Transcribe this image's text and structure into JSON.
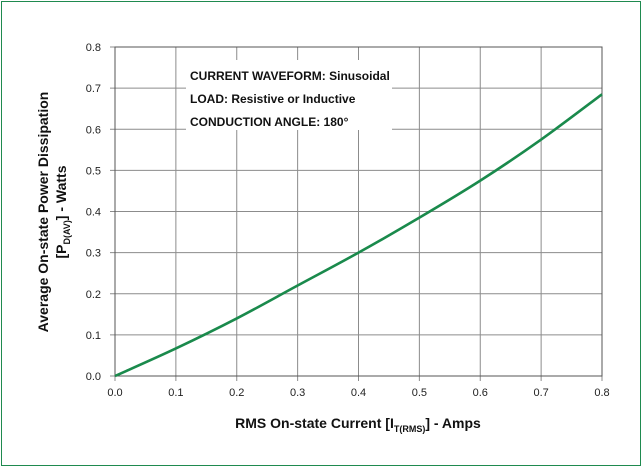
{
  "chart_data": {
    "type": "line",
    "xlabel": {
      "main": "RMS On-state Current [I",
      "sub": "T(RMS)",
      "tail": "] - Amps"
    },
    "ylabel": {
      "line1": "Average On-state Power Dissipation",
      "line2_main": "[P",
      "line2_sub": "D(AV)",
      "line2_tail": "] - Watts"
    },
    "annotations": [
      "CURRENT WAVEFORM: Sinusoidal",
      "LOAD: Resistive or Inductive",
      "CONDUCTION ANGLE: 180°"
    ],
    "xlim": [
      0,
      0.8
    ],
    "ylim": [
      0,
      0.8
    ],
    "x_ticks": [
      "0.0",
      "0.1",
      "0.2",
      "0.3",
      "0.4",
      "0.5",
      "0.6",
      "0.7",
      "0.8"
    ],
    "y_ticks": [
      "0.0",
      "0.1",
      "0.2",
      "0.3",
      "0.4",
      "0.5",
      "0.6",
      "0.7",
      "0.8"
    ],
    "grid": true,
    "series": [
      {
        "color": "#1a8a4c",
        "x": [
          0.0,
          0.1,
          0.2,
          0.3,
          0.4,
          0.5,
          0.6,
          0.7,
          0.8
        ],
        "y": [
          0.0,
          0.067,
          0.14,
          0.22,
          0.3,
          0.385,
          0.475,
          0.575,
          0.685
        ]
      }
    ]
  }
}
